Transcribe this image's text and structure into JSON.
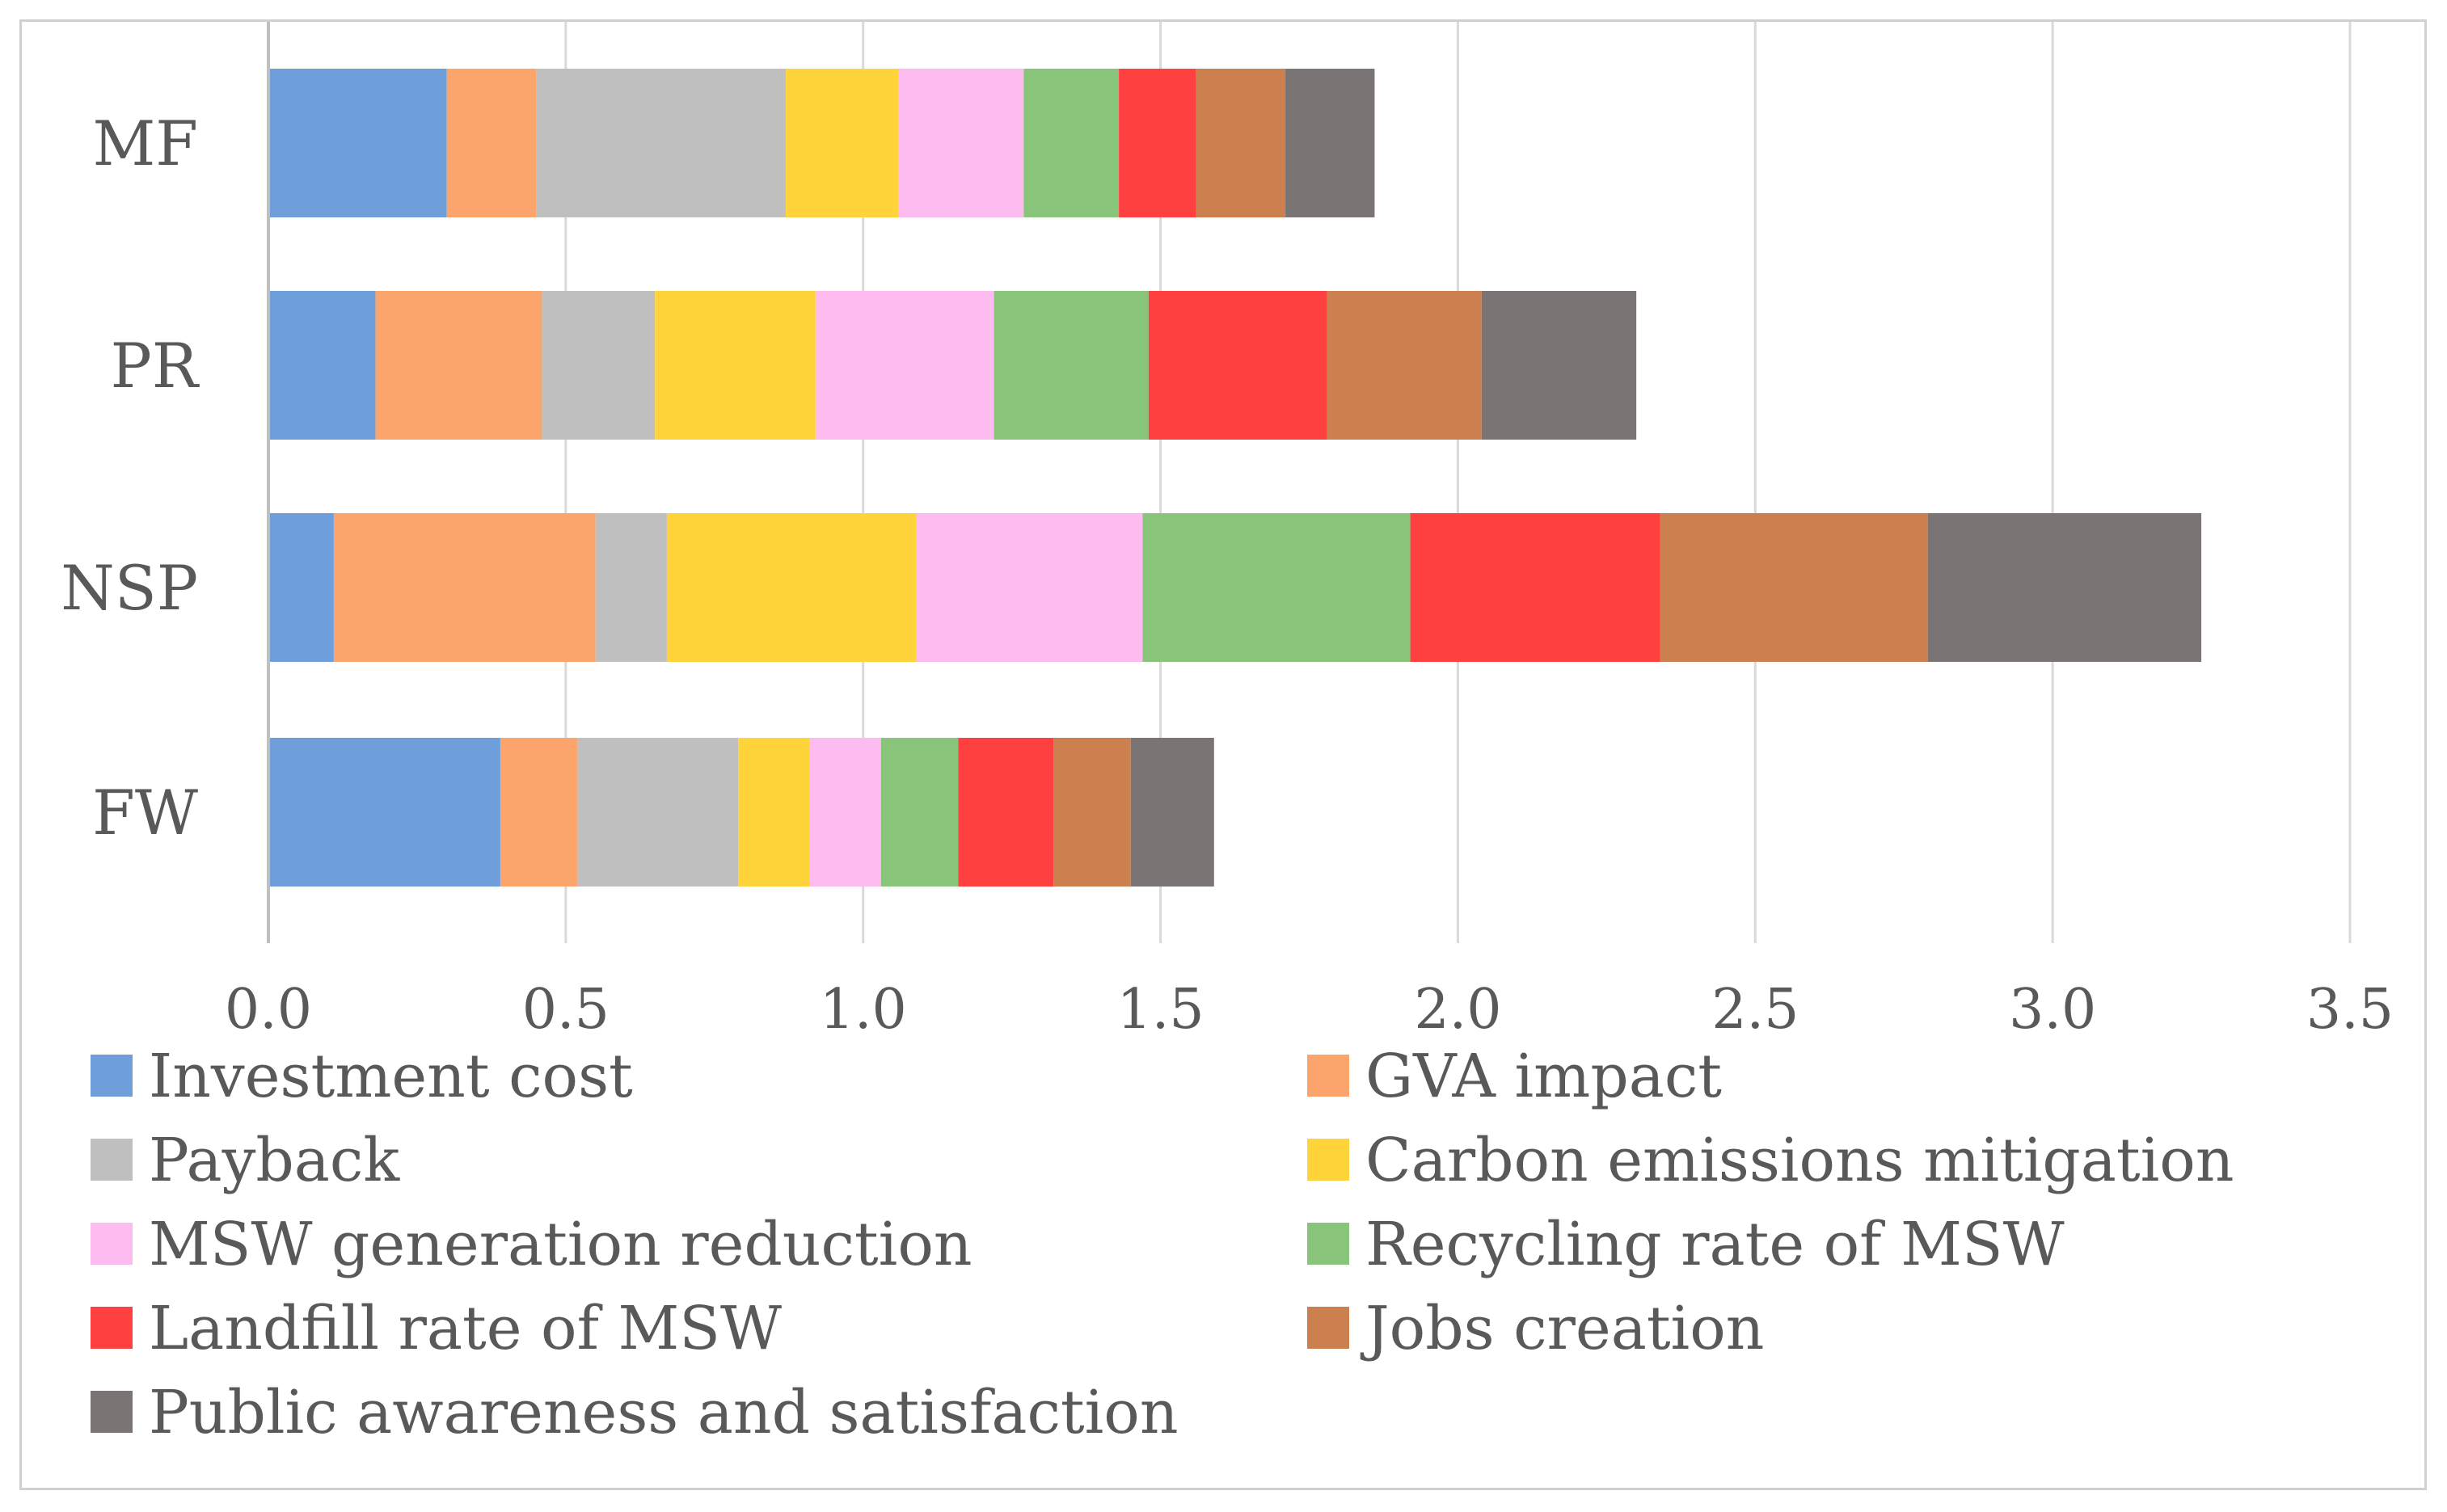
{
  "chart_data": {
    "type": "bar",
    "orientation": "horizontal",
    "stacked": true,
    "title": "",
    "xlabel": "",
    "ylabel": "",
    "xlim": [
      0,
      3.5
    ],
    "x_ticks": [
      "0.0",
      "0.5",
      "1.0",
      "1.5",
      "2.0",
      "2.5",
      "3.0",
      "3.5"
    ],
    "grid": "vertical",
    "legend_position": "bottom",
    "categories": [
      "MF",
      "PR",
      "NSP",
      "FW"
    ],
    "series": [
      {
        "name": "Investment cost",
        "color": "#6E9FDA",
        "values": [
          0.3,
          0.18,
          0.11,
          0.39
        ]
      },
      {
        "name": "GVA impact",
        "color": "#FBA56C",
        "values": [
          0.15,
          0.28,
          0.44,
          0.13
        ]
      },
      {
        "name": "Payback",
        "color": "#BFBFBF",
        "values": [
          0.42,
          0.19,
          0.12,
          0.27
        ]
      },
      {
        "name": "Carbon emissions mitigation",
        "color": "#FFD43B",
        "values": [
          0.19,
          0.27,
          0.42,
          0.12
        ]
      },
      {
        "name": "MSW generation reduction",
        "color": "#FDBBEF",
        "values": [
          0.21,
          0.3,
          0.38,
          0.12
        ]
      },
      {
        "name": "Recycling rate of MSW",
        "color": "#88C57A",
        "values": [
          0.16,
          0.26,
          0.45,
          0.13
        ]
      },
      {
        "name": "Landfill rate of MSW",
        "color": "#FF4040",
        "values": [
          0.13,
          0.3,
          0.42,
          0.16
        ]
      },
      {
        "name": "Jobs creation",
        "color": "#CC7F4F",
        "values": [
          0.15,
          0.26,
          0.45,
          0.13
        ]
      },
      {
        "name": "Public awareness and satisfaction",
        "color": "#7A7474",
        "values": [
          0.15,
          0.26,
          0.46,
          0.14
        ]
      }
    ]
  }
}
